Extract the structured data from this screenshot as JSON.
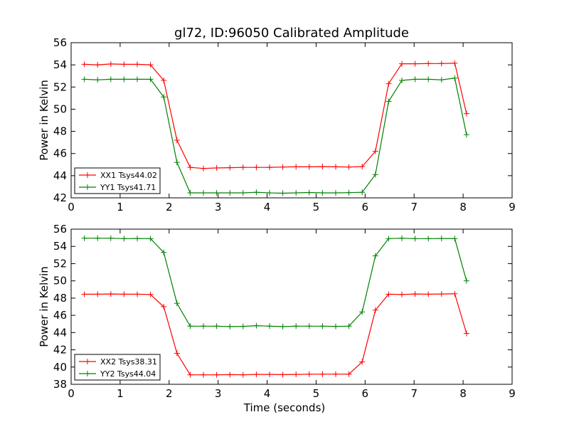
{
  "title": "gl72, ID:96050 Calibrated Amplitude",
  "chart_data": [
    {
      "type": "line",
      "ylabel": "Power in Kelvin",
      "xlabel": "",
      "xlim": [
        0,
        9
      ],
      "ylim": [
        42,
        56
      ],
      "xticks": [
        "0",
        "1",
        "2",
        "3",
        "4",
        "5",
        "6",
        "7",
        "8",
        "9"
      ],
      "yticks": [
        "42",
        "44",
        "46",
        "48",
        "50",
        "52",
        "54",
        "56"
      ],
      "legend_position": "lower-left",
      "x": [
        0.27,
        0.54,
        0.81,
        1.08,
        1.35,
        1.62,
        1.89,
        2.16,
        2.43,
        2.7,
        2.97,
        3.24,
        3.51,
        3.78,
        4.05,
        4.32,
        4.59,
        4.86,
        5.13,
        5.4,
        5.67,
        5.94,
        6.21,
        6.48,
        6.75,
        7.02,
        7.29,
        7.56,
        7.83,
        8.07
      ],
      "series": [
        {
          "name": "XX1 Tsys44.02",
          "color": "#ff0000",
          "values": [
            54.05,
            54.0,
            54.08,
            54.05,
            54.05,
            54.0,
            52.6,
            47.2,
            44.75,
            44.65,
            44.7,
            44.72,
            44.75,
            44.75,
            44.75,
            44.78,
            44.8,
            44.8,
            44.82,
            44.8,
            44.78,
            44.82,
            46.2,
            52.3,
            54.1,
            54.1,
            54.12,
            54.12,
            54.15,
            49.6
          ]
        },
        {
          "name": "YY1 Tsys41.71",
          "color": "#008000",
          "values": [
            52.7,
            52.65,
            52.7,
            52.7,
            52.7,
            52.7,
            51.1,
            45.2,
            42.45,
            42.45,
            42.45,
            42.45,
            42.45,
            42.5,
            42.45,
            42.42,
            42.45,
            42.48,
            42.45,
            42.45,
            42.47,
            42.5,
            44.1,
            50.7,
            52.6,
            52.7,
            52.7,
            52.65,
            52.8,
            47.7
          ]
        }
      ]
    },
    {
      "type": "line",
      "ylabel": "Power in Kelvin",
      "xlabel": "Time (seconds)",
      "xlim": [
        0,
        9
      ],
      "ylim": [
        38,
        56
      ],
      "xticks": [
        "0",
        "1",
        "2",
        "3",
        "4",
        "5",
        "6",
        "7",
        "8",
        "9"
      ],
      "yticks": [
        "38",
        "40",
        "42",
        "44",
        "46",
        "48",
        "50",
        "52",
        "54",
        "56"
      ],
      "legend_position": "lower-left",
      "x": [
        0.27,
        0.54,
        0.81,
        1.08,
        1.35,
        1.62,
        1.89,
        2.16,
        2.43,
        2.7,
        2.97,
        3.24,
        3.51,
        3.78,
        4.05,
        4.32,
        4.59,
        4.86,
        5.13,
        5.4,
        5.67,
        5.94,
        6.21,
        6.48,
        6.75,
        7.02,
        7.29,
        7.56,
        7.83,
        8.07
      ],
      "series": [
        {
          "name": "XX2 Tsys38.31",
          "color": "#ff0000",
          "values": [
            48.45,
            48.45,
            48.48,
            48.45,
            48.45,
            48.42,
            47.0,
            41.6,
            39.1,
            39.1,
            39.1,
            39.12,
            39.1,
            39.15,
            39.15,
            39.12,
            39.15,
            39.17,
            39.18,
            39.18,
            39.18,
            40.6,
            46.6,
            48.45,
            48.42,
            48.48,
            48.45,
            48.48,
            48.5,
            43.9
          ]
        },
        {
          "name": "YY2 Tsys44.04",
          "color": "#008000",
          "values": [
            54.95,
            54.95,
            54.95,
            54.9,
            54.92,
            54.9,
            53.3,
            47.4,
            44.75,
            44.75,
            44.75,
            44.7,
            44.72,
            44.8,
            44.75,
            44.7,
            44.75,
            44.75,
            44.75,
            44.72,
            44.75,
            46.4,
            52.9,
            54.9,
            54.95,
            54.9,
            54.9,
            54.92,
            54.9,
            50.0
          ]
        }
      ]
    }
  ]
}
